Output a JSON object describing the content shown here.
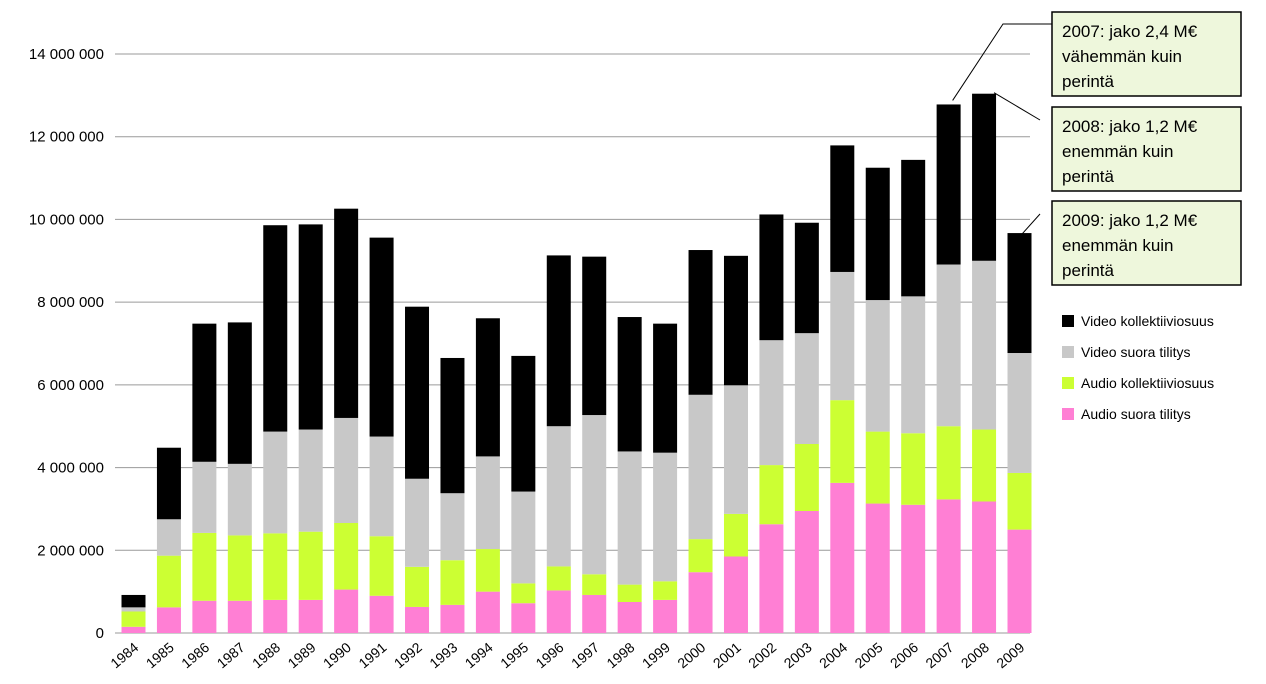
{
  "chart_data": {
    "type": "bar",
    "stacked": true,
    "categories": [
      "1984",
      "1985",
      "1986",
      "1987",
      "1988",
      "1989",
      "1990",
      "1991",
      "1992",
      "1993",
      "1994",
      "1995",
      "1996",
      "1997",
      "1998",
      "1999",
      "2000",
      "2001",
      "2002",
      "2003",
      "2004",
      "2005",
      "2006",
      "2007",
      "2008",
      "2009"
    ],
    "series": [
      {
        "name": "Audio suora tilitys",
        "color": "#ff7fd4",
        "values": [
          150000,
          620000,
          780000,
          780000,
          800000,
          800000,
          1050000,
          900000,
          630000,
          680000,
          1000000,
          720000,
          1030000,
          920000,
          750000,
          800000,
          1470000,
          1850000,
          2630000,
          2950000,
          3630000,
          3130000,
          3100000,
          3230000,
          3180000,
          2500000
        ]
      },
      {
        "name": "Audio kollektiiviosuus",
        "color": "#ccff33",
        "values": [
          370000,
          1250000,
          1640000,
          1580000,
          1610000,
          1650000,
          1610000,
          1440000,
          970000,
          1080000,
          1030000,
          480000,
          580000,
          500000,
          420000,
          450000,
          800000,
          1030000,
          1430000,
          1620000,
          2000000,
          1740000,
          1730000,
          1770000,
          1740000,
          1370000
        ]
      },
      {
        "name": "Video suora tilitys",
        "color": "#c8c8c8",
        "values": [
          100000,
          880000,
          1720000,
          1730000,
          2460000,
          2470000,
          2540000,
          2410000,
          2130000,
          1620000,
          2240000,
          2220000,
          3390000,
          3850000,
          3220000,
          3110000,
          3490000,
          3110000,
          3020000,
          2680000,
          3100000,
          3180000,
          3310000,
          3910000,
          4080000,
          2900000
        ]
      },
      {
        "name": "Video kollektiiviosuus",
        "color": "#000000",
        "values": [
          300000,
          1730000,
          3340000,
          3420000,
          4990000,
          4960000,
          5060000,
          4810000,
          4160000,
          3270000,
          3340000,
          3280000,
          4130000,
          3830000,
          3250000,
          3120000,
          3500000,
          3130000,
          3040000,
          2670000,
          3060000,
          3200000,
          3300000,
          3870000,
          4040000,
          2900000
        ]
      }
    ],
    "y_tick_labels": [
      "0",
      "2 000 000",
      "4 000 000",
      "6 000 000",
      "8 000 000",
      "10 000 000",
      "12 000 000",
      "14 000 000"
    ],
    "ylim": [
      0,
      14000000
    ],
    "ytick_step": 2000000,
    "grid": true,
    "legend_position": "right",
    "legend_order": [
      "Video kollektiiviosuus",
      "Video suora tilitys",
      "Audio kollektiiviosuus",
      "Audio suora tilitys"
    ],
    "annotations": [
      {
        "category": "2007",
        "lines": [
          "2007: jako 2,4 M€",
          "vähemmän kuin",
          "perintä"
        ]
      },
      {
        "category": "2008",
        "lines": [
          "2008: jako 1,2 M€",
          "enemmän kuin",
          "perintä"
        ]
      },
      {
        "category": "2009",
        "lines": [
          "2009: jako 1,2 M€",
          "enemmän kuin",
          "perintä"
        ]
      }
    ],
    "annotation_box_color": "#eef7dc"
  }
}
